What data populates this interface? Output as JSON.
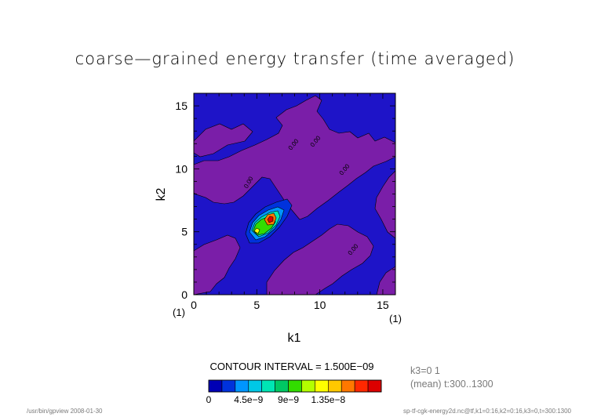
{
  "chart_data": {
    "type": "heatmap",
    "title": "coarse—grained energy transfer (time averaged)",
    "xlabel": "k1",
    "ylabel": "k2",
    "xlim": [
      0,
      16
    ],
    "ylim": [
      0,
      16
    ],
    "x_ticks": [
      "0",
      "5",
      "10",
      "15"
    ],
    "y_ticks": [
      "0",
      "5",
      "10",
      "15"
    ],
    "x_tick_values": [
      0,
      5,
      10,
      15
    ],
    "y_tick_values": [
      0,
      5,
      10,
      15
    ],
    "x_index_label": "(1)",
    "x_index_end_label": "(1)",
    "y_index_label": "(1)",
    "contour_labels": [
      "0.00",
      "0.00",
      "0.00",
      "0.00",
      "0.00"
    ],
    "contour_interval_text": "CONTOUR INTERVAL = 1.500E−09",
    "colorbar": {
      "colors": [
        "#0000b4",
        "#0032dc",
        "#0096ff",
        "#00c8e6",
        "#00e6b4",
        "#00c864",
        "#32dc00",
        "#b4ff00",
        "#ffff00",
        "#ffc800",
        "#ff7800",
        "#ff2800",
        "#dc0000"
      ],
      "labels": [
        "0",
        "4.5e−9",
        "9e−9",
        "1.35e−8"
      ],
      "label_levels": [
        0,
        3,
        6,
        9
      ]
    },
    "background_regions": {
      "low_color": "#7a1ea8",
      "base_color": "#1e14c8"
    },
    "peak": {
      "k1": 6,
      "k2": 6,
      "value": 1.5e-08
    },
    "secondary_peak": {
      "k1": 5,
      "k2": 5,
      "value": 9e-09
    }
  },
  "meta": {
    "axis_info_line1": "k3=0 1",
    "axis_info_line2": "(mean) t:300..1300",
    "footer_left": "/usr/bin/gpview  2008-01-30",
    "footer_right": "sp-tf-cgk-energy2d.nc@tf,k1=0:16,k2=0:16,k3=0,t=300:1300"
  }
}
